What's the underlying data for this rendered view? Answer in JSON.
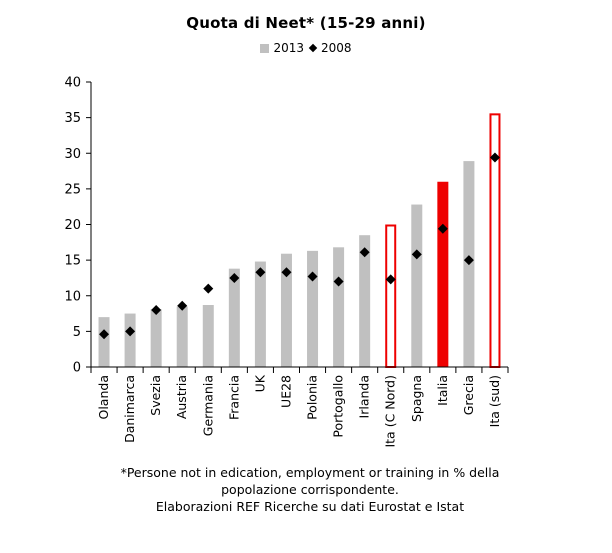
{
  "chart_data": {
    "type": "bar",
    "title": "Quota di Neet* (15-29 anni)",
    "legend": {
      "bar_series": "2013",
      "point_series": "2008",
      "placement": "top"
    },
    "ylim": [
      0,
      40
    ],
    "yticks": [
      "0",
      "5",
      "10",
      "15",
      "20",
      "25",
      "30",
      "35",
      "40"
    ],
    "categories": [
      "Olanda",
      "Danimarca",
      "Svezia",
      "Austria",
      "Germania",
      "Francia",
      "UK",
      "UE28",
      "Polonia",
      "Portogallo",
      "Irlanda",
      "Ita (C Nord)",
      "Spagna",
      "Italia",
      "Grecia",
      "Ita (sud)"
    ],
    "series": [
      {
        "name": "2013",
        "kind": "bar",
        "values": [
          7.0,
          7.5,
          8.1,
          8.5,
          8.7,
          13.8,
          14.8,
          15.9,
          16.3,
          16.8,
          18.5,
          20.0,
          22.8,
          26.0,
          28.9,
          35.6
        ]
      },
      {
        "name": "2008",
        "kind": "diamond",
        "values": [
          4.6,
          5.0,
          8.0,
          8.6,
          11.0,
          12.5,
          13.3,
          13.3,
          12.7,
          12.0,
          16.1,
          12.3,
          15.8,
          19.4,
          15.0,
          29.4
        ]
      }
    ],
    "bar_styles": [
      "gray",
      "gray",
      "gray",
      "gray",
      "gray",
      "gray",
      "gray",
      "gray",
      "gray",
      "gray",
      "gray",
      "outlined-red",
      "gray",
      "solid-red",
      "gray",
      "outlined-red"
    ],
    "colors": {
      "gray": "#c0c0c0",
      "red": "#ee0000",
      "marker": "#000000",
      "axis": "#000000"
    },
    "grid": false
  },
  "footnote": {
    "line1": "*Persone not in edication, employment or training in % della",
    "line2": "popolazione corrispondente.",
    "line3": "Elaborazioni REF Ricerche su dati Eurostat e Istat"
  }
}
